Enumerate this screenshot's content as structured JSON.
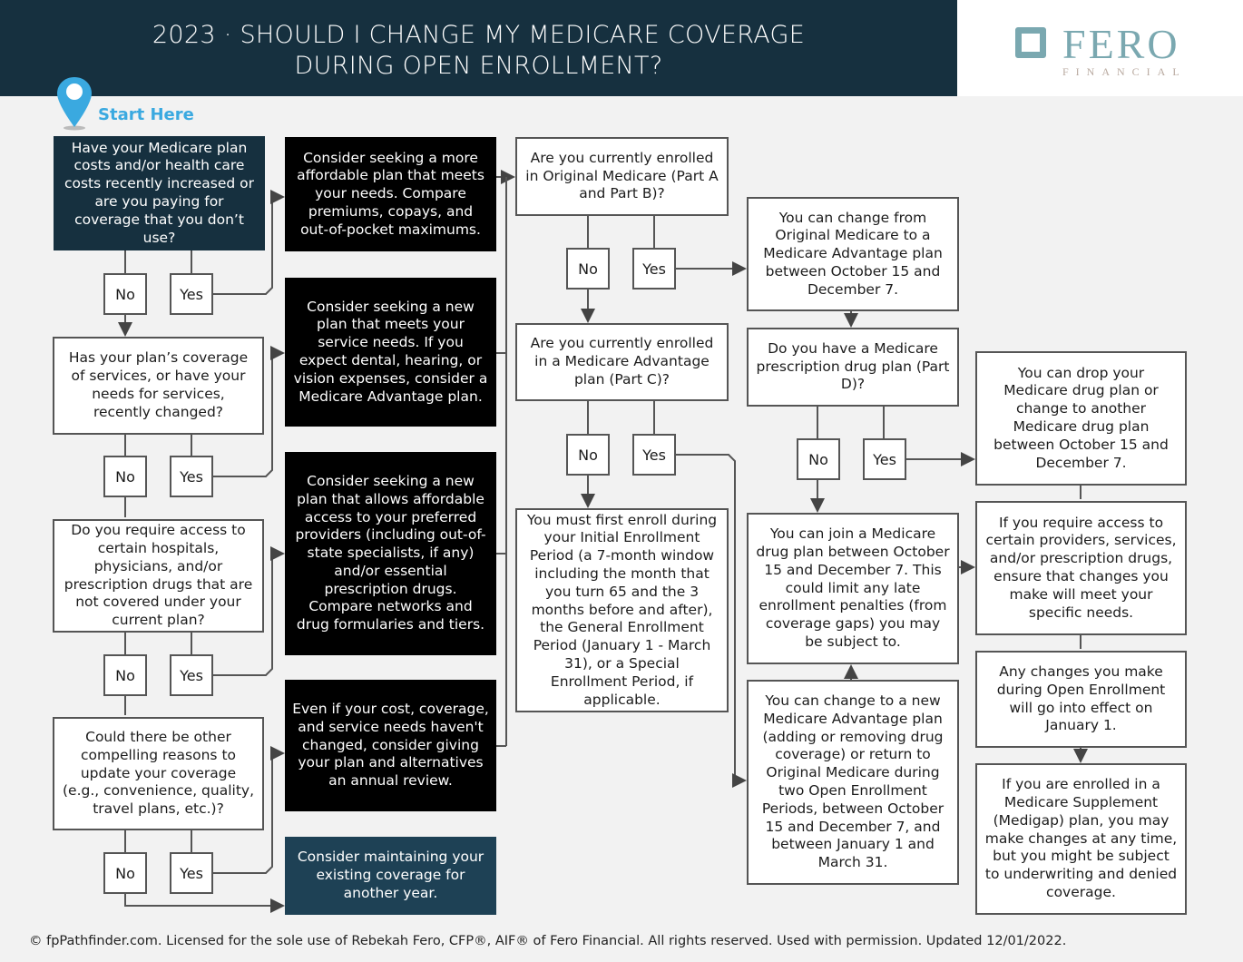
{
  "header": {
    "title_line1": "2023 · SHOULD I CHANGE MY MEDICARE COVERAGE",
    "title_line2": "DURING OPEN ENROLLMENT?"
  },
  "logo": {
    "name": "FERO",
    "sub": "FINANCIAL"
  },
  "start_label": "Start Here",
  "labels": {
    "no": "No",
    "yes": "Yes"
  },
  "questions": {
    "q1": "Have your Medicare plan costs and/or health care costs recently increased or are you paying for coverage that you don’t use?",
    "q2": "Has your plan’s coverage of services, or have your needs for services, recently changed?",
    "q3": "Do you require access to certain hospitals, physicians, and/or prescription drugs that are not covered under your current plan?",
    "q4": "Could there be other compelling reasons to update your coverage (e.g., convenience, quality, travel plans, etc.)?",
    "q5": "Are you currently enrolled in Original Medicare (Part A and Part B)?",
    "q6": "Are you currently enrolled in a Medicare Advantage plan (Part C)?",
    "q7": "Do you have a Medicare prescription drug plan (Part D)?"
  },
  "actions": {
    "a1": "Consider seeking a more affordable plan that meets your needs. Compare premiums, copays, and out-of-pocket maximums.",
    "a2": "Consider seeking a new plan that meets your service needs. If you expect dental, hearing, or vision expenses, consider a Medicare Advantage plan.",
    "a3": "Consider seeking a new plan that allows affordable access to your preferred providers (including out-of-state specialists, if any) and/or essential prescription drugs. Compare networks and drug formularies and tiers.",
    "a4": "Even if your cost, coverage, and service needs haven't changed, consider giving your plan and alternatives an annual review.",
    "a5": "Consider maintaining your existing coverage for another year."
  },
  "results": {
    "r1": "You must first enroll during your Initial Enrollment Period (a 7-month window including the month that you turn 65 and the 3 months before and after), the General Enrollment Period (January 1 - March 31), or a Special Enrollment Period, if applicable.",
    "r2": "You can change from Original Medicare to a Medicare Advantage plan between October 15 and December 7.",
    "r3": "You can join a Medicare drug plan between October 15 and December 7. This could limit any late enrollment penalties (from coverage gaps) you may be subject to.",
    "r4": "You can change to a new Medicare Advantage plan (adding or removing drug coverage) or return to Original Medicare during two Open Enrollment Periods, between October 15 and December 7, and between January 1 and March 31.",
    "r5": "You can drop your Medicare drug plan or change to another Medicare drug plan between October 15 and December 7.",
    "r6": "If you require access to certain providers, services, and/or prescription drugs, ensure that changes you make will meet your specific needs.",
    "r7": "Any changes you make during Open Enrollment will go into effect on January 1.",
    "r8": "If you are enrolled in a Medicare Supplement (Medigap) plan, you may make changes at any time, but you might be subject to underwriting and denied coverage."
  },
  "footer": "© fpPathfinder.com. Licensed for the sole use of Rebekah Fero, CFP®, AIF® of Fero Financial. All rights reserved. Used with permission. Updated 12/01/2022.",
  "colors": {
    "header": "#16303f",
    "start": "#3aa9e0",
    "logo": "#7aa8b0"
  }
}
